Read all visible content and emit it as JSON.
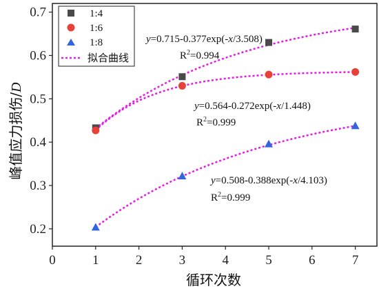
{
  "chart_data": {
    "type": "scatter",
    "xlabel": "循环次数",
    "ylabel": "峰值应力损伤/",
    "ylabel_symbol": "D",
    "xlim": [
      0,
      7.5
    ],
    "ylim": [
      0.16,
      0.72
    ],
    "x_ticks": [
      0,
      1,
      2,
      3,
      4,
      5,
      6,
      7
    ],
    "y_ticks": [
      0.2,
      0.3,
      0.4,
      0.5,
      0.6,
      0.7
    ],
    "x_tick_labels": [
      "0",
      "1",
      "2",
      "3",
      "4",
      "5",
      "6",
      "7"
    ],
    "y_tick_labels": [
      "0.2",
      "0.3",
      "0.4",
      "0.5",
      "0.6",
      "0.7"
    ],
    "grid": false,
    "legend_position": "top-left",
    "series": [
      {
        "name": "1:4",
        "marker": "square",
        "color": "#4a4a4a",
        "x": [
          1,
          3,
          5,
          7
        ],
        "y": [
          0.433,
          0.551,
          0.63,
          0.661
        ],
        "fit": {
          "a": 0.715,
          "b": 0.377,
          "c": 3.508
        },
        "equation": "=0.715-0.377exp(-/3.508)",
        "r2": "=0.994"
      },
      {
        "name": "1:6",
        "marker": "circle",
        "color": "#e8413a",
        "x": [
          1,
          3,
          5,
          7
        ],
        "y": [
          0.427,
          0.53,
          0.556,
          0.562
        ],
        "fit": {
          "a": 0.564,
          "b": 0.272,
          "c": 1.448
        },
        "equation": "=0.564-0.272exp(-/1.448)",
        "r2": "=0.999"
      },
      {
        "name": "1:8",
        "marker": "triangle",
        "color": "#3366dd",
        "x": [
          1,
          3,
          5,
          7
        ],
        "y": [
          0.204,
          0.322,
          0.396,
          0.438
        ],
        "fit": {
          "a": 0.508,
          "b": 0.388,
          "c": 4.103
        },
        "equation": "=0.508-0.388exp(-/4.103)",
        "r2": "=0.999"
      }
    ],
    "fit_legend_label": "拟合曲线",
    "fit_color": "#e619e6",
    "annotation_y_var": "y",
    "annotation_x_var": "x",
    "annotation_r_label": "R",
    "annotation_r_sup": "2"
  }
}
